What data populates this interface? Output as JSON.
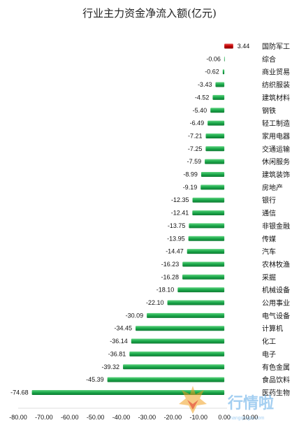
{
  "chart_data": {
    "type": "bar",
    "orientation": "horizontal",
    "title": "行业主力资金净流入额(亿元)",
    "categories": [
      "国防军工",
      "综合",
      "商业贸易",
      "纺织服装",
      "建筑材料",
      "钢铁",
      "轻工制造",
      "家用电器",
      "交通运输",
      "休闲服务",
      "建筑装饰",
      "房地产",
      "银行",
      "通信",
      "非银金融",
      "传媒",
      "汽车",
      "农林牧渔",
      "采掘",
      "机械设备",
      "公用事业",
      "电气设备",
      "计算机",
      "化工",
      "电子",
      "有色金属",
      "食品饮料",
      "医药生物"
    ],
    "values": [
      3.44,
      -0.06,
      -0.62,
      -3.43,
      -4.52,
      -5.4,
      -6.49,
      -7.21,
      -7.25,
      -7.59,
      -8.99,
      -9.19,
      -12.35,
      -12.41,
      -13.75,
      -13.95,
      -14.47,
      -16.23,
      -16.28,
      -18.1,
      -22.1,
      -30.09,
      -34.45,
      -36.14,
      -36.81,
      -39.32,
      -45.39,
      -74.68
    ],
    "value_labels": [
      "3.44",
      "-0.06",
      "-0.62",
      "-3.43",
      "-4.52",
      "-5.40",
      "-6.49",
      "-7.21",
      "-7.25",
      "-7.59",
      "-8.99",
      "-9.19",
      "-12.35",
      "-12.41",
      "-13.75",
      "-13.95",
      "-14.47",
      "-16.23",
      "-16.28",
      "-18.10",
      "-22.10",
      "-30.09",
      "-34.45",
      "-36.14",
      "-36.81",
      "-39.32",
      "-45.39",
      "-74.68"
    ],
    "xlim": [
      -80,
      10
    ],
    "x_ticks": [
      "-80.00",
      "-70.00",
      "-60.00",
      "-50.00",
      "-40.00",
      "-30.00",
      "-20.00",
      "-10.00",
      "0.00",
      "10.00"
    ],
    "x_tick_values": [
      -80,
      -70,
      -60,
      -50,
      -40,
      -30,
      -20,
      -10,
      0,
      10
    ],
    "grid": false,
    "legend": "none",
    "colors": {
      "positive": "#c00000",
      "negative": "#1aa84a",
      "negative_dark": "#0e7a32",
      "positive_dark": "#8a0000"
    }
  },
  "watermark": {
    "text": "行情啦",
    "url": "hangqingla.com",
    "icon": "fox-logo-icon"
  }
}
